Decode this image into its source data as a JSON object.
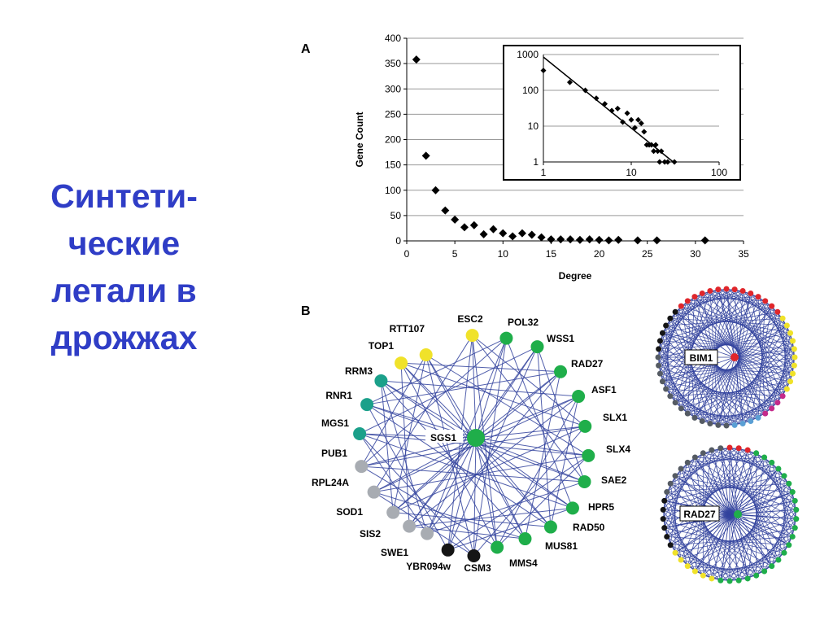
{
  "slide": {
    "title_lines": [
      "Синтети-",
      "ческие",
      "летали в",
      "дрожжах"
    ]
  },
  "panels": {
    "a_label": "A",
    "b_label": "B"
  },
  "colors": {
    "title": "#2f3dc6",
    "edge": "#33439e",
    "yellow": "#f0e22a",
    "teal": "#1ba08a",
    "green": "#1fae4a",
    "gray": "#a8acb2",
    "black": "#151515",
    "red": "#e0262b",
    "darkgray": "#555b63",
    "magenta": "#c42a8a",
    "lightblue": "#5a9fd4"
  },
  "chart_data": [
    {
      "type": "scatter",
      "xlabel": "Degree",
      "ylabel": "Gene Count",
      "xlim": [
        0,
        35
      ],
      "ylim": [
        0,
        400
      ],
      "xticks": [
        0,
        5,
        10,
        15,
        20,
        25,
        30,
        35
      ],
      "yticks": [
        0,
        50,
        100,
        150,
        200,
        250,
        300,
        350,
        400
      ],
      "grid": "horizontal",
      "points": [
        [
          1,
          358
        ],
        [
          2,
          168
        ],
        [
          3,
          100
        ],
        [
          4,
          60
        ],
        [
          5,
          42
        ],
        [
          6,
          27
        ],
        [
          7,
          31
        ],
        [
          8,
          13
        ],
        [
          9,
          23
        ],
        [
          10,
          15
        ],
        [
          11,
          9
        ],
        [
          12,
          15
        ],
        [
          13,
          12
        ],
        [
          14,
          7
        ],
        [
          15,
          3
        ],
        [
          16,
          3
        ],
        [
          17,
          3
        ],
        [
          18,
          2
        ],
        [
          19,
          3
        ],
        [
          20,
          2
        ],
        [
          21,
          1
        ],
        [
          22,
          2
        ],
        [
          24,
          1
        ],
        [
          26,
          1
        ],
        [
          31,
          1
        ]
      ]
    },
    {
      "type": "scatter",
      "scale": "log-log",
      "xlim": [
        1,
        100
      ],
      "ylim": [
        1,
        1000
      ],
      "xticks": [
        1,
        10,
        100
      ],
      "yticks": [
        1,
        10,
        100,
        1000
      ],
      "grid": "horizontal",
      "points": [
        [
          1,
          358
        ],
        [
          2,
          168
        ],
        [
          3,
          100
        ],
        [
          4,
          60
        ],
        [
          5,
          42
        ],
        [
          6,
          27
        ],
        [
          7,
          31
        ],
        [
          8,
          13
        ],
        [
          9,
          23
        ],
        [
          10,
          15
        ],
        [
          11,
          9
        ],
        [
          12,
          15
        ],
        [
          13,
          12
        ],
        [
          14,
          7
        ],
        [
          15,
          3
        ],
        [
          16,
          3
        ],
        [
          17,
          3
        ],
        [
          18,
          2
        ],
        [
          19,
          3
        ],
        [
          20,
          2
        ],
        [
          21,
          1
        ],
        [
          22,
          2
        ],
        [
          24,
          1
        ],
        [
          26,
          1
        ],
        [
          31,
          1
        ]
      ],
      "fit_line": [
        [
          1,
          850
        ],
        [
          30,
          1
        ]
      ]
    }
  ],
  "network": {
    "center": {
      "label": "SGS1",
      "color": "green"
    },
    "nodes": [
      {
        "label": "ESC2",
        "color": "yellow"
      },
      {
        "label": "POL32",
        "color": "green"
      },
      {
        "label": "WSS1",
        "color": "green"
      },
      {
        "label": "RAD27",
        "color": "green"
      },
      {
        "label": "ASF1",
        "color": "green"
      },
      {
        "label": "SLX1",
        "color": "green"
      },
      {
        "label": "SLX4",
        "color": "green"
      },
      {
        "label": "SAE2",
        "color": "green"
      },
      {
        "label": "HPR5",
        "color": "green"
      },
      {
        "label": "RAD50",
        "color": "green"
      },
      {
        "label": "MUS81",
        "color": "green"
      },
      {
        "label": "MMS4",
        "color": "green"
      },
      {
        "label": "CSM3",
        "color": "black"
      },
      {
        "label": "YBR094w",
        "color": "black"
      },
      {
        "label": "SWE1",
        "color": "gray"
      },
      {
        "label": "SIS2",
        "color": "gray"
      },
      {
        "label": "SOD1",
        "color": "gray"
      },
      {
        "label": "RPL24A",
        "color": "gray"
      },
      {
        "label": "PUB1",
        "color": "gray"
      },
      {
        "label": "MGS1",
        "color": "teal"
      },
      {
        "label": "RNR1",
        "color": "teal"
      },
      {
        "label": "RRM3",
        "color": "teal"
      },
      {
        "label": "TOP1",
        "color": "yellow"
      },
      {
        "label": "RTT107",
        "color": "yellow"
      }
    ]
  },
  "mini_networks": [
    {
      "label": "BIM1",
      "center_color": "red"
    },
    {
      "label": "RAD27",
      "center_color": "green"
    }
  ]
}
